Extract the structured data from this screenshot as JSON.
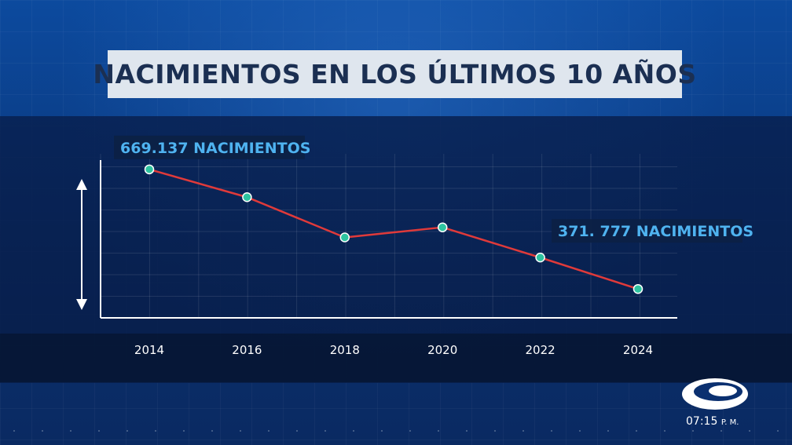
{
  "title": "NACIMIENTOS EN LOS ÚLTIMOS 10 AÑOS",
  "chart_data": {
    "type": "line",
    "title": "NACIMIENTOS EN LOS ÚLTIMOS 10 AÑOS",
    "categories": [
      "2014",
      "2016",
      "2018",
      "2020",
      "2022",
      "2024"
    ],
    "series": [
      {
        "values": [
          669137,
          600000,
          500000,
          525000,
          450000,
          371777
        ]
      }
    ],
    "xlabel": "",
    "ylabel": "",
    "ylim": [
      300000,
      700000
    ],
    "line_color": "#e03a3a",
    "marker_color": "#2ec4a0",
    "label_color": "#4fb3f0",
    "annotations": [
      {
        "text": "669.137 NACIMIENTOS",
        "point": 0
      },
      {
        "text": "371. 777 NACIMIENTOS",
        "point": 5
      }
    ],
    "grid": true
  },
  "footer": {
    "clock": "07:15",
    "ampm": "P. M."
  }
}
